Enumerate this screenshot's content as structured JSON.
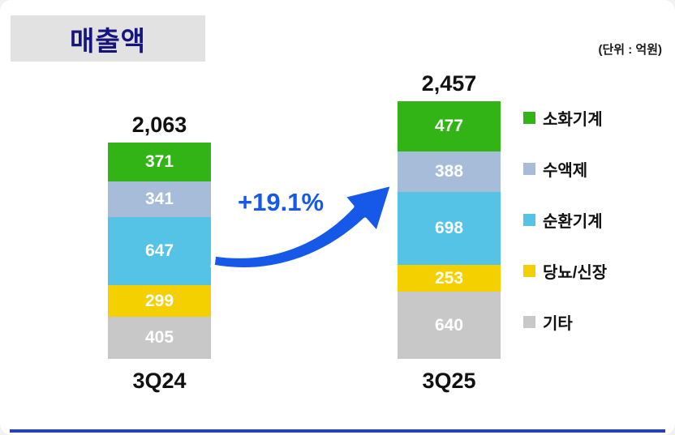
{
  "title": "매출액",
  "unit_label": "(단위 : 억원)",
  "growth_label": "+19.1%",
  "colors": {
    "title_text": "#15157d",
    "title_bg": "#e2e2e2",
    "growth_blue": "#1658e8",
    "bottom_bar": "#2743b0"
  },
  "chart_data": {
    "type": "bar",
    "stacked": true,
    "title": "매출액",
    "unit": "(단위 : 억원)",
    "categories": [
      "3Q24",
      "3Q25"
    ],
    "totals": [
      "2,063",
      "2,457"
    ],
    "growth_annotation": "+19.1%",
    "series": [
      {
        "name": "기타",
        "color": "#c8c8c8",
        "values": [
          405,
          640
        ]
      },
      {
        "name": "당뇨/신장",
        "color": "#f4d000",
        "values": [
          299,
          253
        ]
      },
      {
        "name": "순환기계",
        "color": "#54c3e6",
        "values": [
          647,
          698
        ]
      },
      {
        "name": "수액제",
        "color": "#a6bcd8",
        "values": [
          341,
          388
        ]
      },
      {
        "name": "소화기계",
        "color": "#32b416",
        "values": [
          371,
          477
        ]
      }
    ],
    "series_order": "bottom-to-top",
    "legend_order_top_to_bottom": [
      "소화기계",
      "수액제",
      "순환기계",
      "당뇨/신장",
      "기타"
    ],
    "legend_position": "right",
    "ylim": [
      0,
      2457
    ],
    "grid": false
  }
}
